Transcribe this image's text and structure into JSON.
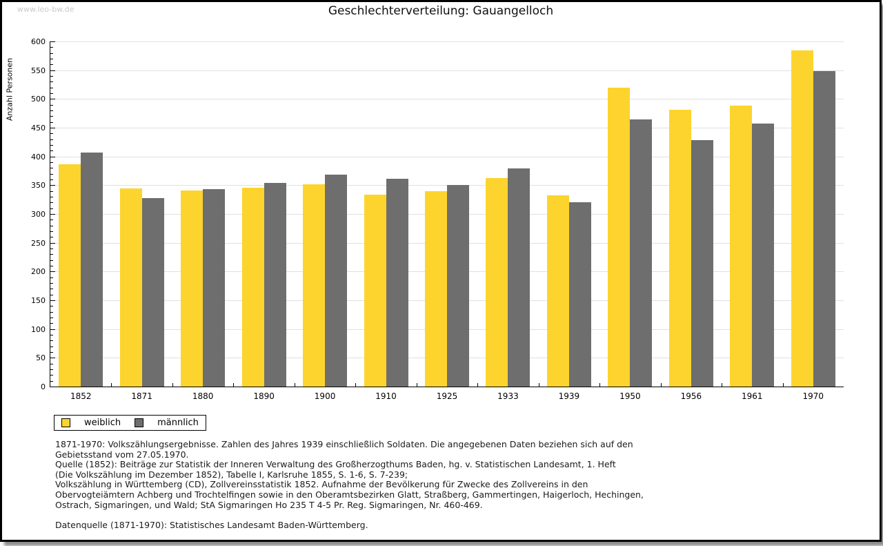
{
  "watermark": "www.leo-bw.de",
  "title": "Geschlechterverteilung: Gauangelloch",
  "chart_data": {
    "type": "bar",
    "title": "Geschlechterverteilung: Gauangelloch",
    "xlabel": "",
    "ylabel": "Anzahl Personen",
    "categories": [
      "1852",
      "1871",
      "1880",
      "1890",
      "1900",
      "1910",
      "1925",
      "1933",
      "1939",
      "1950",
      "1956",
      "1961",
      "1970"
    ],
    "series": [
      {
        "name": "weiblich",
        "color": "#fcd42d",
        "values": [
          387,
          344,
          341,
          346,
          352,
          334,
          340,
          363,
          333,
          520,
          481,
          489,
          585
        ]
      },
      {
        "name": "männlich",
        "color": "#6e6e6e",
        "values": [
          407,
          328,
          343,
          354,
          368,
          361,
          351,
          379,
          321,
          465,
          428,
          457,
          548
        ]
      }
    ],
    "ylim": [
      0,
      600
    ],
    "yticks": [
      0,
      50,
      100,
      150,
      200,
      250,
      300,
      350,
      400,
      450,
      500,
      550,
      600
    ],
    "ytick_major": 50,
    "ytick_minor": 10,
    "grid": true,
    "legend_position": "bottom-left",
    "gridline_color": "#e0e0e0"
  },
  "legend": {
    "items": [
      {
        "label": "weiblich",
        "color": "#fcd42d"
      },
      {
        "label": "männlich",
        "color": "#6e6e6e"
      }
    ]
  },
  "footnotes": {
    "lines": [
      "1871-1970: Volkszählungsergebnisse. Zahlen des Jahres 1939 einschließlich Soldaten. Die angegebenen Daten beziehen sich auf den",
      "Gebietsstand vom 27.05.1970.",
      "Quelle (1852): Beiträge zur Statistik der Inneren Verwaltung des Großherzogthums Baden, hg. v. Statistischen Landesamt, 1. Heft",
      "(Die Volkszählung im Dezember 1852), Tabelle I, Karlsruhe 1855, S. 1-6, S. 7-239;",
      "Volkszählung in Württemberg (CD), Zollvereinsstatistik 1852. Aufnahme der Bevölkerung für Zwecke des Zollvereins in den",
      "Obervogteiämtern Achberg und Trochtelfingen sowie in den Oberamtsbezirken Glatt, Straßberg, Gammertingen, Haigerloch, Hechingen,",
      "Ostrach, Sigmaringen, und Wald; StA Sigmaringen Ho 235 T 4-5 Pr. Reg. Sigmaringen, Nr. 460-469.",
      "",
      "Datenquelle (1871-1970): Statistisches Landesamt Baden-Württemberg."
    ]
  }
}
